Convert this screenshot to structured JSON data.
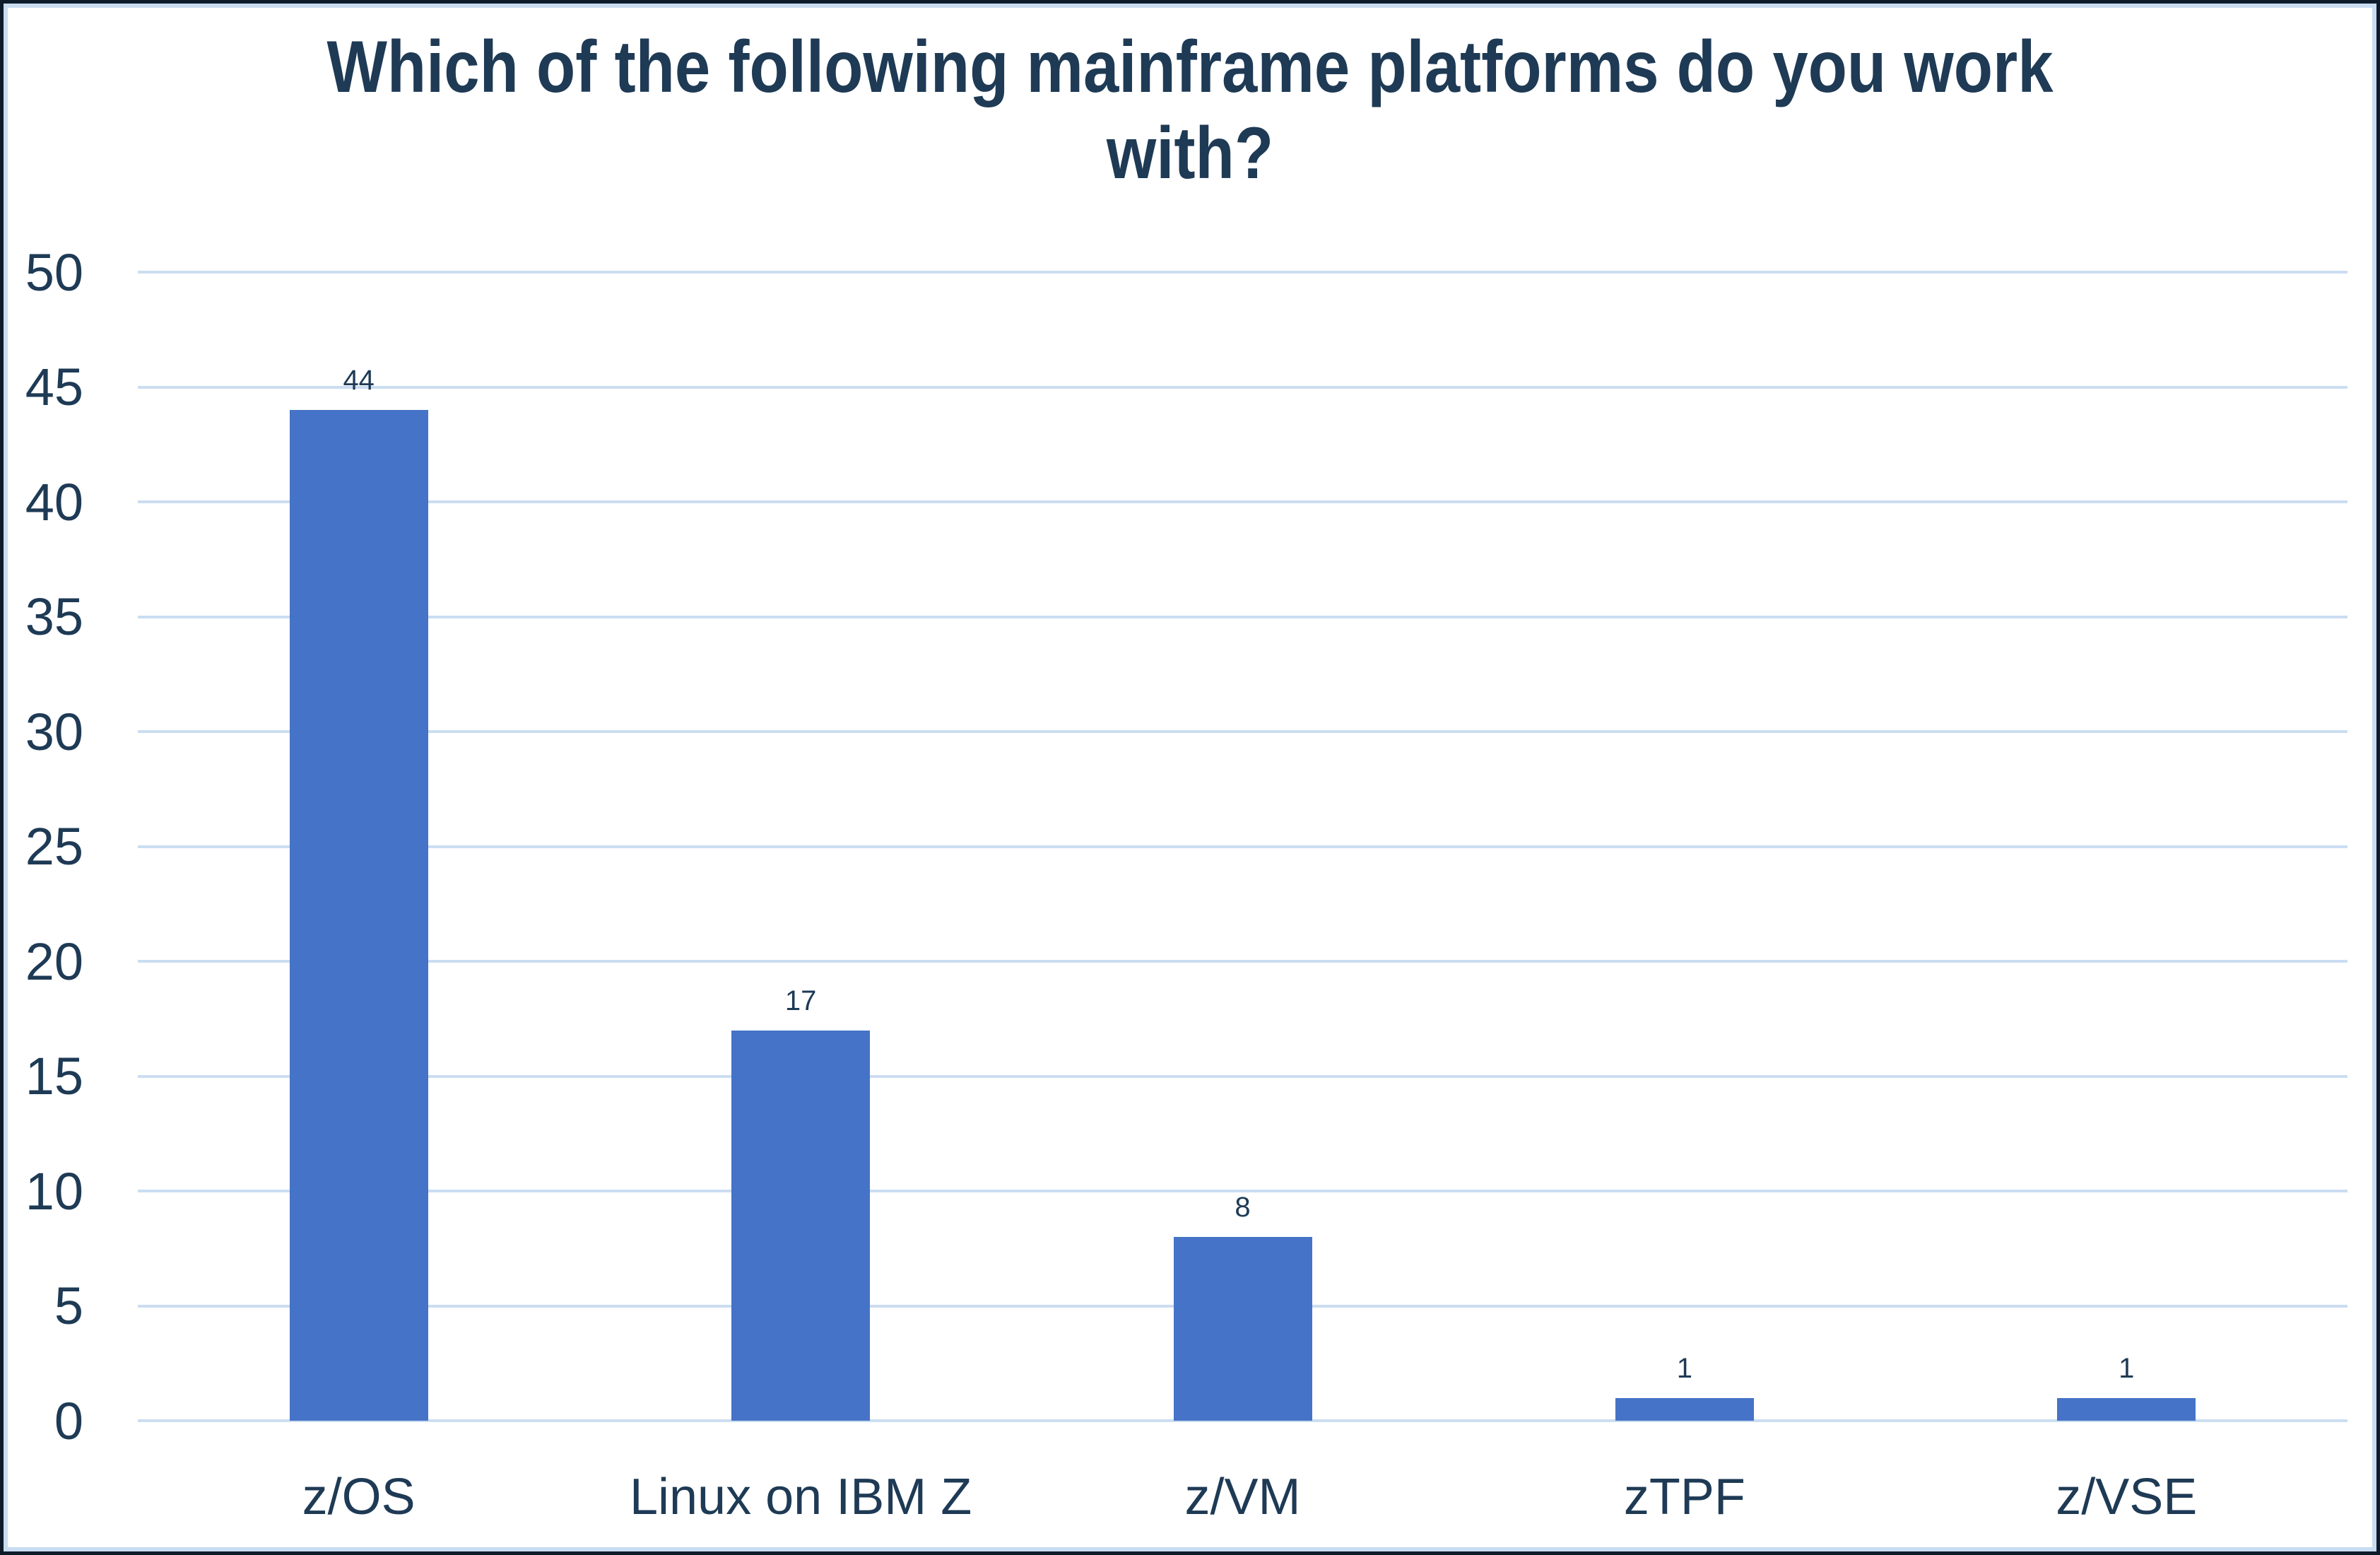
{
  "chart_data": {
    "type": "bar",
    "title": "Which of the following mainframe platforms do you work with?",
    "title_lines": [
      "Which of the following mainframe platforms do you work",
      "with?"
    ],
    "categories": [
      "z/OS",
      "Linux on IBM Z",
      "z/VM",
      "zTPF",
      "z/VSE"
    ],
    "values": [
      44,
      17,
      8,
      1,
      1
    ],
    "data_labels": [
      44,
      17,
      8,
      1,
      1
    ],
    "xlabel": "",
    "ylabel": "",
    "ylim": [
      0,
      50
    ],
    "ytick_step": 5,
    "yticks": [
      0,
      5,
      10,
      15,
      20,
      25,
      30,
      35,
      40,
      45,
      50
    ],
    "grid": "horizontal",
    "legend": "none",
    "colors": {
      "bar": "#4573C7",
      "gridline": "#CBDDF1",
      "text": "#1E3A55",
      "frame_outer": "#0E1B2A",
      "frame_inner": "#C9DDF1",
      "background": "#FFFFFF"
    }
  }
}
